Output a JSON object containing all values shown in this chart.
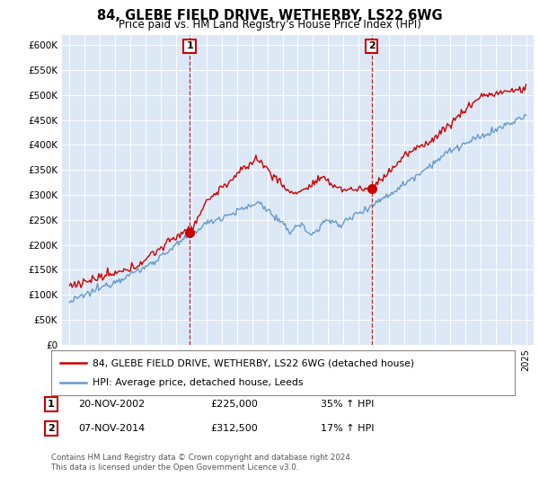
{
  "title": "84, GLEBE FIELD DRIVE, WETHERBY, LS22 6WG",
  "subtitle": "Price paid vs. HM Land Registry's House Price Index (HPI)",
  "legend_line1": "84, GLEBE FIELD DRIVE, WETHERBY, LS22 6WG (detached house)",
  "legend_line2": "HPI: Average price, detached house, Leeds",
  "footer": "Contains HM Land Registry data © Crown copyright and database right 2024.\nThis data is licensed under the Open Government Licence v3.0.",
  "sale1_date": "20-NOV-2002",
  "sale1_price": "£225,000",
  "sale1_hpi": "35% ↑ HPI",
  "sale1_x": 2002.89,
  "sale1_y": 225000,
  "sale2_date": "07-NOV-2014",
  "sale2_price": "£312,500",
  "sale2_hpi": "17% ↑ HPI",
  "sale2_x": 2014.85,
  "sale2_y": 312500,
  "red_color": "#cc0000",
  "blue_color": "#6699cc",
  "vline_color": "#cc0000",
  "ylim_min": 0,
  "ylim_max": 620000,
  "yticks": [
    0,
    50000,
    100000,
    150000,
    200000,
    250000,
    300000,
    350000,
    400000,
    450000,
    500000,
    550000,
    600000
  ],
  "xlim_min": 1994.5,
  "xlim_max": 2025.5,
  "background_color": "#dce8f5"
}
